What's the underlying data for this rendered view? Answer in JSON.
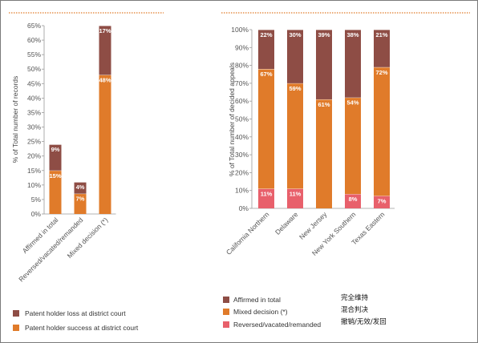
{
  "annotations": [
    "完全维持",
    "混合判决",
    "撤销/无效/发回"
  ],
  "chart_data": [
    {
      "type": "bar",
      "stacked": true,
      "ylabel": "% of Total number of records",
      "xlabel": "",
      "ylim": [
        0,
        65
      ],
      "yticks": [
        "0%",
        "5%",
        "10%",
        "15%",
        "20%",
        "25%",
        "30%",
        "35%",
        "40%",
        "45%",
        "50%",
        "55%",
        "60%",
        "65%"
      ],
      "categories": [
        "Affirmed in total",
        "Reversed/vacated/remanded",
        "Mixed decision (*)"
      ],
      "series": [
        {
          "name": "Patent holder loss at district court",
          "color": "#8e4d45",
          "values": [
            9,
            4,
            17
          ],
          "labels": [
            "9%",
            "4%",
            "17%"
          ]
        },
        {
          "name": "Patent holder success at district court",
          "color": "#e07b2a",
          "values": [
            15,
            7,
            48
          ],
          "labels": [
            "15%",
            "7%",
            "48%"
          ]
        }
      ],
      "legend": "bottom-left",
      "grid": false
    },
    {
      "type": "bar",
      "stacked": true,
      "ylabel": "% of Total number of decided appeals",
      "xlabel": "",
      "ylim": [
        0,
        100
      ],
      "yticks": [
        "0%",
        "10%",
        "20%",
        "30%",
        "40%",
        "50%",
        "60%",
        "70%",
        "80%",
        "90%",
        "100%"
      ],
      "categories": [
        "California Northern",
        "Delaware",
        "New Jersey",
        "New York Southern",
        "Texas Eastern"
      ],
      "series": [
        {
          "name": "Affirmed in total",
          "color": "#8e4d45",
          "values": [
            22,
            30,
            39,
            38,
            21
          ],
          "labels": [
            "22%",
            "30%",
            "39%",
            "38%",
            "21%"
          ]
        },
        {
          "name": "Mixed decision (*)",
          "color": "#e07b2a",
          "values": [
            67,
            59,
            61,
            54,
            72
          ],
          "labels": [
            "67%",
            "59%",
            "61%",
            "54%",
            "72%"
          ]
        },
        {
          "name": "Reversed/vacated/remanded",
          "color": "#e8606b",
          "values": [
            11,
            11,
            0,
            8,
            7
          ],
          "labels": [
            "11%",
            "11%",
            "",
            "8%",
            "7%"
          ]
        }
      ],
      "legend": "bottom-left",
      "grid": false
    }
  ]
}
